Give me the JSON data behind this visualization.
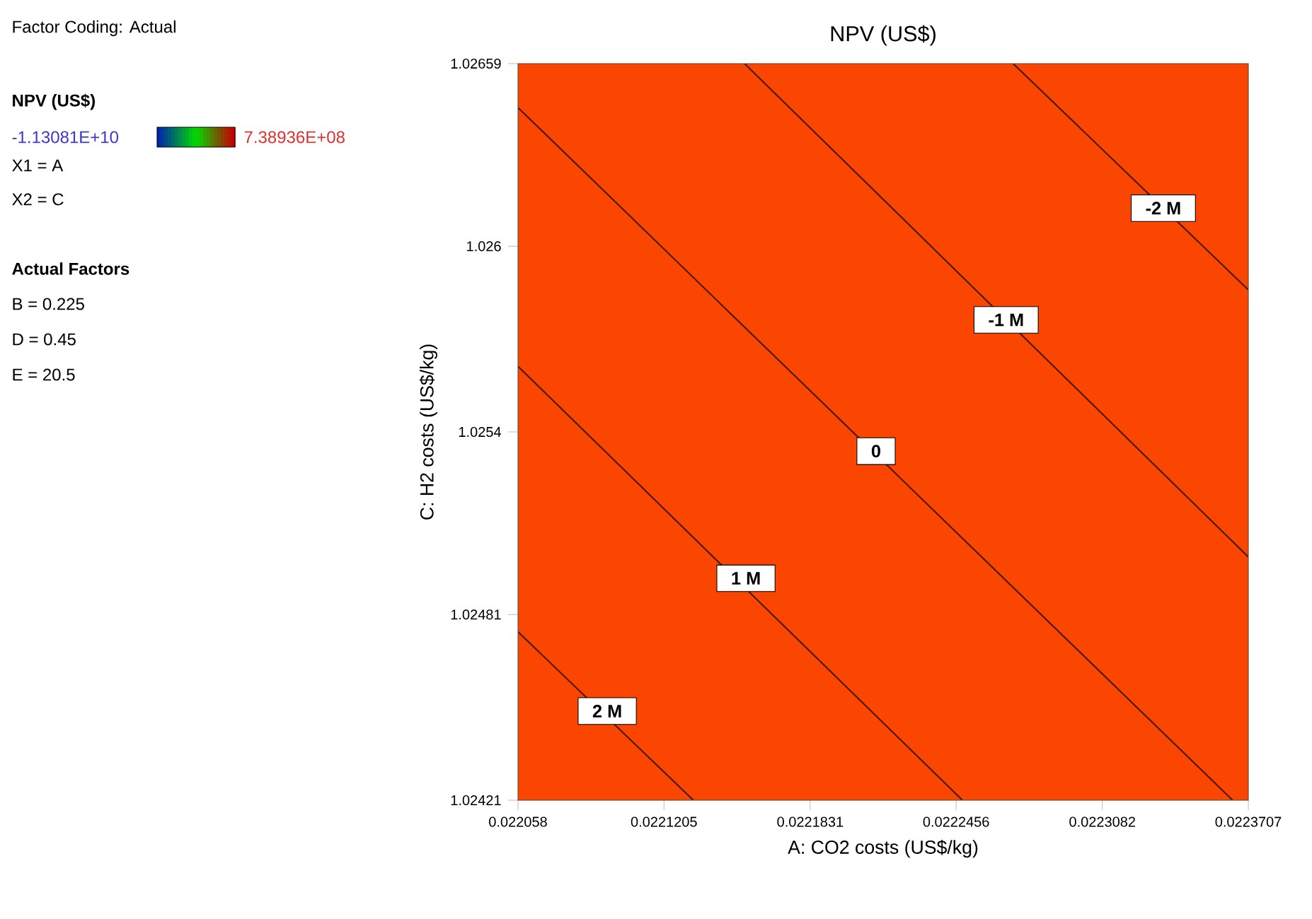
{
  "chart_data": {
    "type": "line",
    "title": "NPV (US$)",
    "xlabel": "A: CO2 costs (US$/kg)",
    "ylabel": "C: H2 costs (US$/kg)",
    "xlim": [
      0.022058,
      0.0223707
    ],
    "ylim": [
      1.02421,
      1.02659
    ],
    "xticks": [
      0.022058,
      0.0221205,
      0.0221831,
      0.0222456,
      0.0223082,
      0.0223707
    ],
    "yticks": [
      1.02421,
      1.02481,
      1.0254,
      1.026,
      1.02659
    ],
    "grid": false,
    "marker": "none",
    "line_style": "solid",
    "bands": [
      {
        "axis": "x",
        "from": 0.022058,
        "to": 0.0223707,
        "color": "#fa4600"
      }
    ],
    "series": [
      {
        "color": "#4a1a0a",
        "x": [
          0.022058,
          0.0221331
        ],
        "values": [
          1.024754,
          1.02421
        ]
      },
      {
        "color": "#4a1a0a",
        "x": [
          0.022058,
          0.0222483
        ],
        "values": [
          1.025612,
          1.02421
        ]
      },
      {
        "color": "#4a1a0a",
        "x": [
          0.022058,
          0.022364
        ],
        "values": [
          1.026448,
          1.02421
        ]
      },
      {
        "color": "#4a1a0a",
        "x": [
          0.022155,
          0.0223707
        ],
        "values": [
          1.02659,
          1.024996
        ]
      },
      {
        "color": "#4a1a0a",
        "x": [
          0.02227,
          0.0223707
        ],
        "values": [
          1.02659,
          1.025859
        ]
      }
    ],
    "annotations": [
      "Factor Coding: Actual",
      "NPV (US$)",
      "-1.13081E+10",
      "7.38936E+08",
      "X1 = A",
      "X2 = C",
      "Actual Factors",
      "B = 0.225",
      "D = 0.45",
      "E = 20.5",
      {
        "text": "-2 M",
        "x": 0.0223343,
        "y": 1.026123
      },
      {
        "text": "-1 M",
        "x": 0.022267,
        "y": 1.025762
      },
      {
        "text": "0",
        "x": 0.0222113,
        "y": 1.025338
      },
      {
        "text": "1 M",
        "x": 0.0221556,
        "y": 1.024927
      },
      {
        "text": "2 M",
        "x": 0.0220962,
        "y": 1.024498
      }
    ]
  }
}
